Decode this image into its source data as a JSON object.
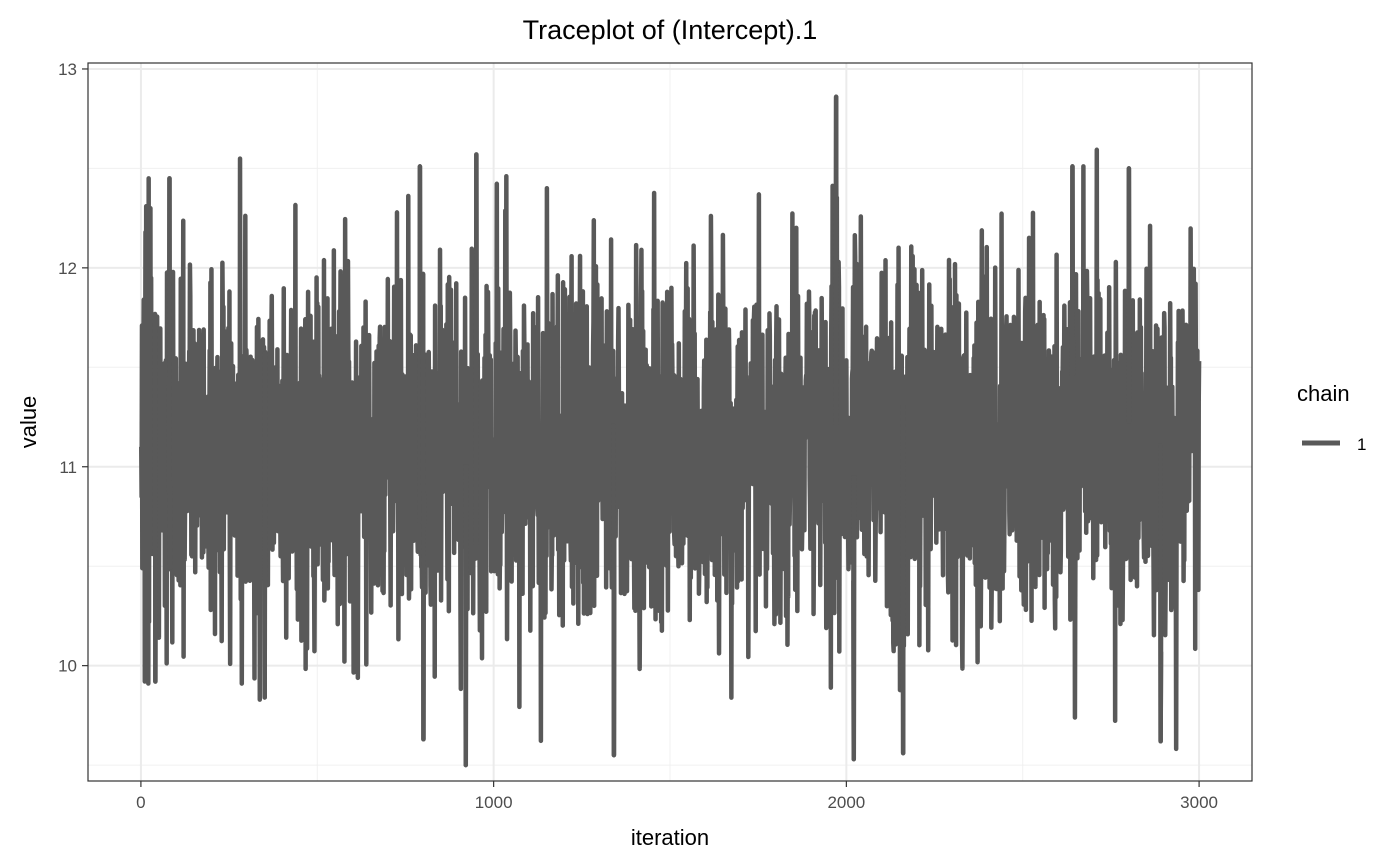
{
  "chart_data": {
    "type": "line",
    "title": "Traceplot of  (Intercept).1",
    "xlabel": "iteration",
    "ylabel": "value",
    "xlim": [
      -150,
      3150
    ],
    "ylim": [
      9.42,
      13.03
    ],
    "x_ticks": [
      0,
      1000,
      2000,
      3000
    ],
    "x_tick_labels": [
      "0",
      "1000",
      "2000",
      "3000"
    ],
    "x_minor_ticks": [
      500,
      1500,
      2500
    ],
    "y_ticks": [
      10,
      11,
      12,
      13
    ],
    "y_tick_labels": [
      "10",
      "11",
      "12",
      "13"
    ],
    "y_minor_ticks": [
      9.5,
      10.5,
      11.5,
      12.5
    ],
    "grid": true,
    "legend": {
      "title": "chain",
      "position": "right",
      "entries": [
        "1"
      ]
    },
    "series": [
      {
        "name": "1",
        "color": "#595959",
        "n_iterations": 3000,
        "mean": 11.1,
        "sd": 0.45,
        "y_min": 9.5,
        "y_max": 12.86,
        "values": [
          11.1,
          10.85,
          11.71,
          10.49,
          11.68,
          10.62,
          11.52,
          11.84,
          10.58,
          11.79,
          9.92,
          11.36,
          12.18,
          10.4,
          12.31,
          10.88,
          11.65,
          10.61,
          12.1,
          10.75,
          9.91,
          12.45,
          10.22,
          12.26,
          10.58,
          11.34,
          12.3,
          10.8,
          11.95,
          10.63
        ],
        "notable_points": [
          {
            "x": 40,
            "y": 9.92
          },
          {
            "x": 80,
            "y": 12.45
          },
          {
            "x": 350,
            "y": 9.84
          },
          {
            "x": 790,
            "y": 12.51
          },
          {
            "x": 800,
            "y": 9.63
          },
          {
            "x": 920,
            "y": 9.5
          },
          {
            "x": 950,
            "y": 12.57
          },
          {
            "x": 1340,
            "y": 9.55
          },
          {
            "x": 1970,
            "y": 12.86
          },
          {
            "x": 2020,
            "y": 9.53
          },
          {
            "x": 2160,
            "y": 9.56
          },
          {
            "x": 2640,
            "y": 12.51
          },
          {
            "x": 2800,
            "y": 12.5
          },
          {
            "x": 2890,
            "y": 9.62
          }
        ]
      }
    ]
  }
}
